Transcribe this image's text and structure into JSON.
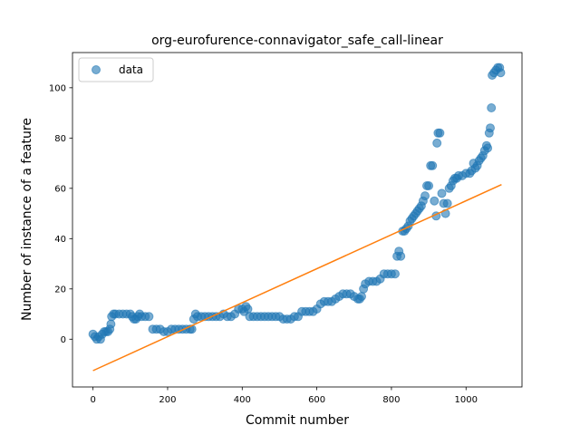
{
  "chart_data": {
    "type": "scatter",
    "title": "org-eurofurence-connavigator_safe_call-linear",
    "xlabel": "Commit number",
    "ylabel": "Number of instance of a feature",
    "xlim": [
      -55,
      1150
    ],
    "ylim": [
      -19,
      114
    ],
    "xticks": [
      0,
      200,
      400,
      600,
      800,
      1000
    ],
    "yticks": [
      0,
      20,
      40,
      60,
      80,
      100
    ],
    "legend": {
      "position": "upper-left",
      "entries": [
        "data"
      ]
    },
    "grid": false,
    "series": [
      {
        "name": "data",
        "kind": "points",
        "color": "#1f77b4",
        "points": [
          [
            0,
            2
          ],
          [
            5,
            1
          ],
          [
            10,
            0
          ],
          [
            15,
            1
          ],
          [
            20,
            0
          ],
          [
            25,
            2
          ],
          [
            30,
            3
          ],
          [
            35,
            3
          ],
          [
            40,
            3
          ],
          [
            45,
            4
          ],
          [
            48,
            6
          ],
          [
            50,
            9
          ],
          [
            55,
            10
          ],
          [
            60,
            10
          ],
          [
            70,
            10
          ],
          [
            80,
            10
          ],
          [
            90,
            10
          ],
          [
            100,
            10
          ],
          [
            105,
            9
          ],
          [
            110,
            8
          ],
          [
            115,
            8
          ],
          [
            120,
            9
          ],
          [
            125,
            10
          ],
          [
            130,
            9
          ],
          [
            140,
            9
          ],
          [
            150,
            9
          ],
          [
            160,
            4
          ],
          [
            170,
            4
          ],
          [
            180,
            4
          ],
          [
            190,
            3
          ],
          [
            200,
            3
          ],
          [
            210,
            4
          ],
          [
            220,
            4
          ],
          [
            230,
            4
          ],
          [
            240,
            4
          ],
          [
            250,
            4
          ],
          [
            260,
            4
          ],
          [
            265,
            4
          ],
          [
            270,
            8
          ],
          [
            275,
            10
          ],
          [
            280,
            9
          ],
          [
            290,
            9
          ],
          [
            300,
            9
          ],
          [
            310,
            9
          ],
          [
            320,
            9
          ],
          [
            330,
            9
          ],
          [
            340,
            9
          ],
          [
            350,
            10
          ],
          [
            360,
            9
          ],
          [
            370,
            9
          ],
          [
            380,
            10
          ],
          [
            390,
            12
          ],
          [
            400,
            12
          ],
          [
            405,
            11
          ],
          [
            410,
            13
          ],
          [
            415,
            12
          ],
          [
            420,
            9
          ],
          [
            430,
            9
          ],
          [
            440,
            9
          ],
          [
            450,
            9
          ],
          [
            460,
            9
          ],
          [
            470,
            9
          ],
          [
            480,
            9
          ],
          [
            490,
            9
          ],
          [
            500,
            9
          ],
          [
            510,
            8
          ],
          [
            520,
            8
          ],
          [
            530,
            8
          ],
          [
            540,
            9
          ],
          [
            550,
            9
          ],
          [
            560,
            11
          ],
          [
            570,
            11
          ],
          [
            580,
            11
          ],
          [
            590,
            11
          ],
          [
            600,
            12
          ],
          [
            610,
            14
          ],
          [
            620,
            15
          ],
          [
            630,
            15
          ],
          [
            640,
            15
          ],
          [
            650,
            16
          ],
          [
            660,
            17
          ],
          [
            670,
            18
          ],
          [
            680,
            18
          ],
          [
            690,
            18
          ],
          [
            700,
            17
          ],
          [
            710,
            16
          ],
          [
            715,
            16
          ],
          [
            720,
            17
          ],
          [
            725,
            20
          ],
          [
            730,
            22
          ],
          [
            740,
            23
          ],
          [
            750,
            23
          ],
          [
            760,
            23
          ],
          [
            770,
            24
          ],
          [
            780,
            26
          ],
          [
            790,
            26
          ],
          [
            800,
            26
          ],
          [
            810,
            26
          ],
          [
            815,
            33
          ],
          [
            820,
            35
          ],
          [
            825,
            33
          ],
          [
            830,
            43
          ],
          [
            835,
            43
          ],
          [
            840,
            44
          ],
          [
            845,
            45
          ],
          [
            850,
            47
          ],
          [
            855,
            48
          ],
          [
            860,
            49
          ],
          [
            865,
            50
          ],
          [
            870,
            51
          ],
          [
            875,
            52
          ],
          [
            880,
            53
          ],
          [
            885,
            55
          ],
          [
            890,
            57
          ],
          [
            895,
            61
          ],
          [
            900,
            61
          ],
          [
            905,
            69
          ],
          [
            910,
            69
          ],
          [
            915,
            55
          ],
          [
            920,
            49
          ],
          [
            922,
            78
          ],
          [
            925,
            82
          ],
          [
            930,
            82
          ],
          [
            935,
            58
          ],
          [
            940,
            54
          ],
          [
            945,
            50
          ],
          [
            950,
            54
          ],
          [
            955,
            60
          ],
          [
            960,
            61
          ],
          [
            965,
            63
          ],
          [
            970,
            64
          ],
          [
            975,
            64
          ],
          [
            980,
            65
          ],
          [
            990,
            65
          ],
          [
            1000,
            66
          ],
          [
            1010,
            66
          ],
          [
            1015,
            67
          ],
          [
            1020,
            70
          ],
          [
            1025,
            68
          ],
          [
            1030,
            69
          ],
          [
            1035,
            71
          ],
          [
            1040,
            72
          ],
          [
            1045,
            73
          ],
          [
            1050,
            75
          ],
          [
            1055,
            77
          ],
          [
            1058,
            76
          ],
          [
            1062,
            82
          ],
          [
            1065,
            84
          ],
          [
            1068,
            92
          ],
          [
            1070,
            105
          ],
          [
            1075,
            106
          ],
          [
            1080,
            107
          ],
          [
            1085,
            108
          ],
          [
            1090,
            108
          ],
          [
            1093,
            106
          ]
        ]
      },
      {
        "name": "",
        "kind": "line",
        "color": "#ff7f0e",
        "points": [
          [
            0,
            -12.5
          ],
          [
            1095,
            61.5
          ]
        ]
      }
    ]
  }
}
